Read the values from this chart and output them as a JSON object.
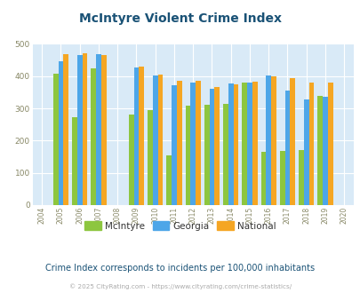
{
  "title": "McIntyre Violent Crime Index",
  "subtitle": "Crime Index corresponds to incidents per 100,000 inhabitants",
  "copyright": "© 2025 CityRating.com - https://www.cityrating.com/crime-statistics/",
  "years": [
    2005,
    2006,
    2007,
    2009,
    2010,
    2011,
    2012,
    2013,
    2014,
    2015,
    2016,
    2017,
    2018,
    2019
  ],
  "mcintyre": [
    407,
    272,
    425,
    281,
    295,
    153,
    308,
    310,
    313,
    380,
    165,
    167,
    170,
    340
  ],
  "georgia": [
    447,
    466,
    468,
    427,
    403,
    373,
    380,
    360,
    378,
    381,
    401,
    356,
    328,
    335
  ],
  "national": [
    469,
    470,
    466,
    430,
    404,
    386,
    386,
    366,
    376,
    383,
    400,
    394,
    379,
    381
  ],
  "color_mcintyre": "#8dc63f",
  "color_georgia": "#4da6e8",
  "color_national": "#f5a623",
  "xlim": [
    2003.5,
    2020.5
  ],
  "ylim": [
    0,
    500
  ],
  "yticks": [
    0,
    100,
    200,
    300,
    400,
    500
  ],
  "xticks": [
    2004,
    2005,
    2006,
    2007,
    2008,
    2009,
    2010,
    2011,
    2012,
    2013,
    2014,
    2015,
    2016,
    2017,
    2018,
    2019,
    2020
  ],
  "bg_color": "#d9eaf7",
  "title_color": "#1a5276",
  "subtitle_color": "#1a5276",
  "copyright_color": "#aaaaaa",
  "bar_width": 0.27
}
